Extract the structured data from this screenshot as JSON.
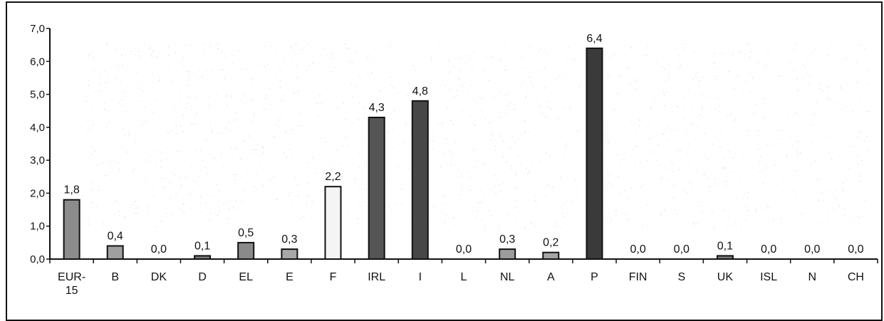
{
  "chart_data": {
    "type": "bar",
    "title": "",
    "xlabel": "",
    "ylabel": "",
    "ylim": [
      0,
      7
    ],
    "ytick_step": 1,
    "ytick_labels": [
      "0,0",
      "1,0",
      "2,0",
      "3,0",
      "4,0",
      "5,0",
      "6,0",
      "7,0"
    ],
    "grid": false,
    "legend": "none",
    "categories": [
      [
        "EUR-",
        "15"
      ],
      [
        "B"
      ],
      [
        "DK"
      ],
      [
        "D"
      ],
      [
        "EL"
      ],
      [
        "E"
      ],
      [
        "F"
      ],
      [
        "IRL"
      ],
      [
        "I"
      ],
      [
        "L"
      ],
      [
        "NL"
      ],
      [
        "A"
      ],
      [
        "P"
      ],
      [
        "FIN"
      ],
      [
        "S"
      ],
      [
        "UK"
      ],
      [
        "ISL"
      ],
      [
        "N"
      ],
      [
        "CH"
      ]
    ],
    "values": [
      1.8,
      0.4,
      0.0,
      0.1,
      0.5,
      0.3,
      2.2,
      4.3,
      4.8,
      0.0,
      0.3,
      0.2,
      6.4,
      0.0,
      0.0,
      0.1,
      0.0,
      0.0,
      0.0
    ],
    "value_labels": [
      "1,8",
      "0,4",
      "0,0",
      "0,1",
      "0,5",
      "0,3",
      "2,2",
      "4,3",
      "4,8",
      "0,0",
      "0,3",
      "0,2",
      "6,4",
      "0,0",
      "0,0",
      "0,1",
      "0,0",
      "0,0",
      "0,0"
    ],
    "bar_fills": [
      "#8c8c8c",
      "#a0a0a0",
      "#a0a0a0",
      "#7a7a7a",
      "#8a8a8a",
      "#a8a8a8",
      "#f4f4f4",
      "#555555",
      "#474747",
      "#a0a0a0",
      "#9c9c9c",
      "#a6a6a6",
      "#3a3a3a",
      "#a0a0a0",
      "#a0a0a0",
      "#7a7a7a",
      "#a0a0a0",
      "#a0a0a0",
      "#a0a0a0"
    ],
    "colors": {
      "bar_outline": "#111111",
      "axis": "#111111",
      "background": "#ffffff",
      "noise": "#c8c8c8"
    }
  }
}
